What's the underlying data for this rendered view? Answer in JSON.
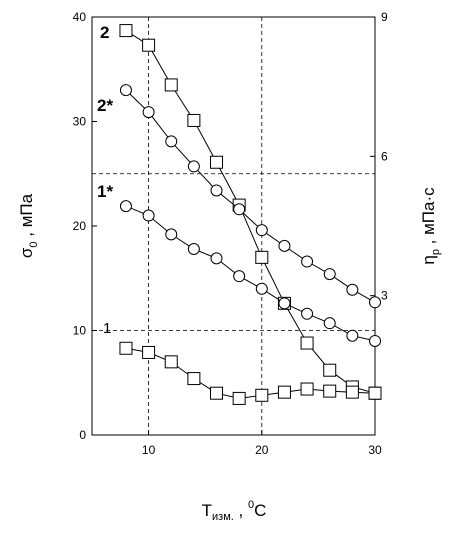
{
  "chart_data": {
    "type": "line",
    "x": [],
    "xlabel": {
      "main": "T",
      "sub": "изм.",
      "sep": " , ",
      "unit_sup": "0",
      "unit": "C"
    },
    "ylabel_left": {
      "main": "σ",
      "sub": "0",
      "rest": " , мПа"
    },
    "ylabel_right": {
      "main": "η",
      "sub": "р",
      "rest": " , мПа·с"
    },
    "xlim": [
      5,
      30
    ],
    "ylim_left": [
      0,
      40
    ],
    "ylim_right": [
      0,
      9
    ],
    "x_ticks": [
      "10",
      "20",
      "30"
    ],
    "y_left_ticks": [
      "0",
      "10",
      "20",
      "30",
      "40"
    ],
    "y_right_ticks": [
      "3",
      "6",
      "9"
    ],
    "grid": {
      "x": [
        10,
        20
      ],
      "y_left": [
        25,
        10
      ],
      "style": "dashed"
    },
    "series": [
      {
        "name": "2",
        "axis": "left",
        "marker": "square",
        "x": [
          8,
          10,
          12,
          14,
          16,
          18,
          20,
          22,
          24,
          26,
          28,
          30
        ],
        "y": [
          38.7,
          37.3,
          33.5,
          30.1,
          26.1,
          22.0,
          17.0,
          12.6,
          8.8,
          6.2,
          4.6,
          4.0
        ]
      },
      {
        "name": "2*",
        "axis": "left",
        "marker": "circle",
        "x": [
          8,
          10,
          12,
          14,
          16,
          18,
          20,
          22,
          24,
          26,
          28,
          30
        ],
        "y": [
          33.0,
          30.9,
          28.1,
          25.7,
          23.4,
          21.6,
          19.6,
          18.1,
          16.6,
          15.4,
          13.9,
          12.7
        ]
      },
      {
        "name": "1*",
        "axis": "left",
        "marker": "circle",
        "x": [
          8,
          10,
          12,
          14,
          16,
          18,
          20,
          22,
          24,
          26,
          28,
          30
        ],
        "y": [
          21.9,
          21.0,
          19.2,
          17.8,
          16.9,
          15.2,
          14.0,
          12.6,
          11.6,
          10.7,
          9.5,
          9.0
        ]
      },
      {
        "name": "1",
        "axis": "left",
        "marker": "square",
        "x": [
          8,
          10,
          12,
          14,
          16,
          18,
          20,
          22,
          24,
          26,
          28,
          30
        ],
        "y": [
          8.3,
          7.9,
          7.0,
          5.4,
          4.0,
          3.5,
          3.8,
          4.1,
          4.4,
          4.2,
          4.1,
          4.0
        ]
      }
    ]
  }
}
